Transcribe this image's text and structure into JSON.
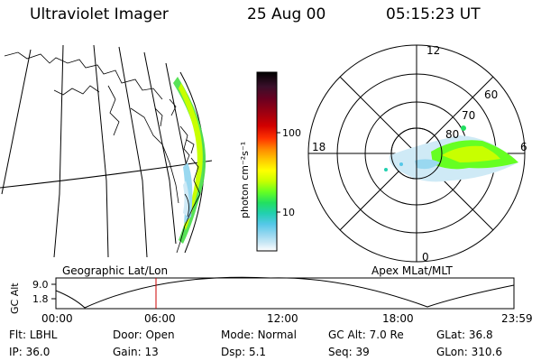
{
  "header": {
    "title": "Ultraviolet Imager",
    "date": "25 Aug 00",
    "time": "05:15:23 UT"
  },
  "colorbar": {
    "unit_label": "photon cm⁻²s⁻¹",
    "ticks": [
      "100",
      "10"
    ],
    "colors": [
      "#000000",
      "#3a0f2a",
      "#6a0020",
      "#a00010",
      "#d20000",
      "#ff3300",
      "#ff8800",
      "#ffc800",
      "#ffff00",
      "#c8ff00",
      "#66ff22",
      "#22e060",
      "#22d0b0",
      "#55c8e8",
      "#99d8f0",
      "#cfeaf6",
      "#ffffff"
    ]
  },
  "polar": {
    "mlt_labels": {
      "top": "12",
      "left": "18",
      "right": "6",
      "bottom": "0"
    },
    "lat_labels": [
      "60",
      "70",
      "80"
    ]
  },
  "map_labels": {
    "left": "Geographic Lat/Lon",
    "right": "Apex MLat/MLT"
  },
  "altitude_plot": {
    "y_title": "GC Alt",
    "y_ticks": [
      "9.0",
      "1.8"
    ],
    "x_ticks": [
      "00:00",
      "06:00",
      "12:00",
      "18:00",
      "23:59"
    ],
    "current_time_color": "#cc0000"
  },
  "info": {
    "row1": [
      {
        "label": "Flt:",
        "value": "LBHL"
      },
      {
        "label": "Door:",
        "value": "Open"
      },
      {
        "label": "Mode:",
        "value": "Normal"
      },
      {
        "label": "GC Alt:",
        "value": "7.0 Re"
      },
      {
        "label": "GLat:",
        "value": "36.8"
      }
    ],
    "row2": [
      {
        "label": "IP:",
        "value": "36.0"
      },
      {
        "label": "Gain:",
        "value": "13"
      },
      {
        "label": "Dsp:",
        "value": "5.1"
      },
      {
        "label": "Seq:",
        "value": "39"
      },
      {
        "label": "GLon:",
        "value": "310.6"
      }
    ]
  }
}
